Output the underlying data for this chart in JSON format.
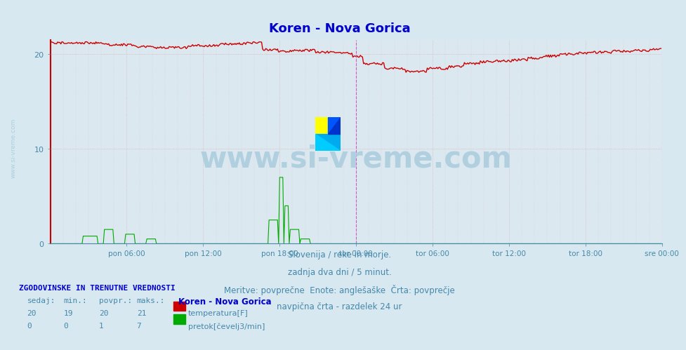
{
  "title": "Koren - Nova Gorica",
  "title_color": "#0000cc",
  "background_color": "#d8e8f0",
  "plot_bg_color": "#dce8f0",
  "ylim": [
    0,
    21.5
  ],
  "yticks": [
    0,
    10,
    20
  ],
  "xlim": [
    0,
    576
  ],
  "x_tick_positions": [
    72,
    144,
    216,
    288,
    360,
    432,
    504,
    576
  ],
  "x_tick_labels": [
    "pon 06:00",
    "pon 12:00",
    "pon 18:00",
    "tor 00:00",
    "tor 06:00",
    "tor 12:00",
    "tor 18:00",
    "sre 00:00"
  ],
  "vline_positions": [
    288,
    576
  ],
  "vline_color": "#cc44cc",
  "grid_color": "#cc6666",
  "text_lines": [
    "Slovenija / reke in morje.",
    "zadnja dva dni / 5 minut.",
    "Meritve: povprečne  Enote: anglešaške  Črta: povprečje",
    "navpična črta - razdelek 24 ur"
  ],
  "text_color": "#4488aa",
  "footer_left_bold": "ZGODOVINSKE IN TRENUTNE VREDNOSTI",
  "table_headers": [
    "sedaj:",
    "min.:",
    "povpr.:",
    "maks.:"
  ],
  "table_row1": [
    "20",
    "19",
    "20",
    "21"
  ],
  "table_row2": [
    "0",
    "0",
    "1",
    "7"
  ],
  "legend_title": "Koren - Nova Gorica",
  "legend_items": [
    {
      "label": "temperatura[F]",
      "color": "#cc0000"
    },
    {
      "label": "pretok[čevelj3/min]",
      "color": "#00aa00"
    }
  ],
  "watermark_text": "www.si-vreme.com",
  "watermark_color": "#aaccdd",
  "sidebar_text": "www.si-vreme.com",
  "sidebar_color": "#aaccdd"
}
